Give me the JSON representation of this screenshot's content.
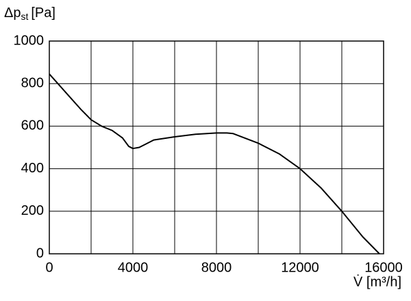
{
  "chart_data": {
    "type": "line",
    "y_label": {
      "symbol": "Δp",
      "subscript": "st",
      "unit": "[Pa]"
    },
    "x_label": "V̇ [m³/h]",
    "x": [
      0,
      500,
      1000,
      1500,
      2000,
      2500,
      3000,
      3500,
      3800,
      4000,
      4300,
      4600,
      5000,
      6000,
      7000,
      8000,
      8500,
      8800,
      10000,
      11000,
      12000,
      13000,
      14000,
      15000,
      15800
    ],
    "series": [
      {
        "color": "#000000",
        "values": [
          845,
          790,
          735,
          680,
          630,
          600,
          580,
          545,
          505,
          495,
          500,
          515,
          535,
          550,
          562,
          568,
          568,
          565,
          520,
          470,
          400,
          310,
          200,
          80,
          0
        ]
      }
    ],
    "xlim": [
      0,
      16000
    ],
    "ylim": [
      0,
      1000
    ],
    "xticks": [
      0,
      4000,
      8000,
      12000,
      16000
    ],
    "x_minor_grid": [
      2000,
      6000,
      10000,
      14000
    ],
    "yticks": [
      0,
      200,
      400,
      600,
      800,
      1000
    ],
    "grid": true
  }
}
